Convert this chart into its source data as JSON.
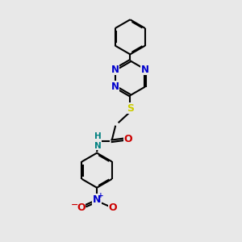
{
  "background_color": "#e8e8e8",
  "bond_color": "#000000",
  "n_color": "#0000cc",
  "o_color": "#cc0000",
  "s_color": "#cccc00",
  "h_color": "#008080",
  "lw": 1.5,
  "doff": 0.055,
  "xlim": [
    0,
    10
  ],
  "ylim": [
    0,
    13
  ],
  "r_hex": 0.95
}
